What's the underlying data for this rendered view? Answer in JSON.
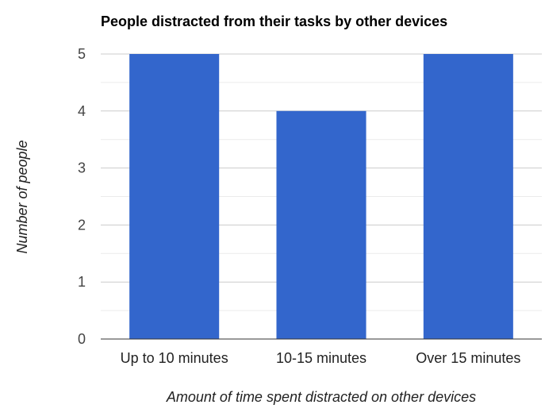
{
  "chart_data": {
    "type": "bar",
    "title": "People distracted from their tasks by other devices",
    "xlabel": "Amount of time spent distracted on other devices",
    "ylabel": "Number of people",
    "categories": [
      "Up to 10 minutes",
      "10-15 minutes",
      "Over 15 minutes"
    ],
    "values": [
      5,
      4,
      5
    ],
    "ylim": [
      0,
      5
    ],
    "yticks": [
      "0",
      "1",
      "2",
      "3",
      "4",
      "5"
    ],
    "grid": true,
    "legend": "none",
    "colors": {
      "bar": "#3366cc",
      "major_grid": "#cccccc",
      "minor_grid": "#ebebeb",
      "baseline": "#333333"
    }
  }
}
